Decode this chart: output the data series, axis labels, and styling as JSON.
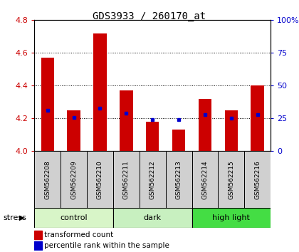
{
  "title": "GDS3933 / 260170_at",
  "samples": [
    "GSM562208",
    "GSM562209",
    "GSM562210",
    "GSM562211",
    "GSM562212",
    "GSM562213",
    "GSM562214",
    "GSM562215",
    "GSM562216"
  ],
  "transformed_count": [
    4.57,
    4.25,
    4.72,
    4.37,
    4.18,
    4.13,
    4.32,
    4.25,
    4.4
  ],
  "percentile_rank": [
    31,
    26,
    33,
    29,
    24,
    24,
    28,
    25,
    28
  ],
  "ylim_left": [
    4.0,
    4.8
  ],
  "ylim_right": [
    0,
    100
  ],
  "yticks_left": [
    4.0,
    4.2,
    4.4,
    4.6,
    4.8
  ],
  "yticks_right": [
    0,
    25,
    50,
    75,
    100
  ],
  "groups": [
    {
      "label": "control",
      "indices": [
        0,
        1,
        2
      ],
      "color": "#d8f5c8"
    },
    {
      "label": "dark",
      "indices": [
        3,
        4,
        5
      ],
      "color": "#c8f0c0"
    },
    {
      "label": "high light",
      "indices": [
        6,
        7,
        8
      ],
      "color": "#44dd44"
    }
  ],
  "bar_color": "#cc0000",
  "dot_color": "#0000cc",
  "bar_width": 0.5,
  "stress_label": "stress",
  "legend_bar_label": "transformed count",
  "legend_dot_label": "percentile rank within the sample",
  "axis_color_left": "#cc0000",
  "axis_color_right": "#0000cc",
  "sample_bg_color": "#d0d0d0",
  "title_fontsize": 10
}
